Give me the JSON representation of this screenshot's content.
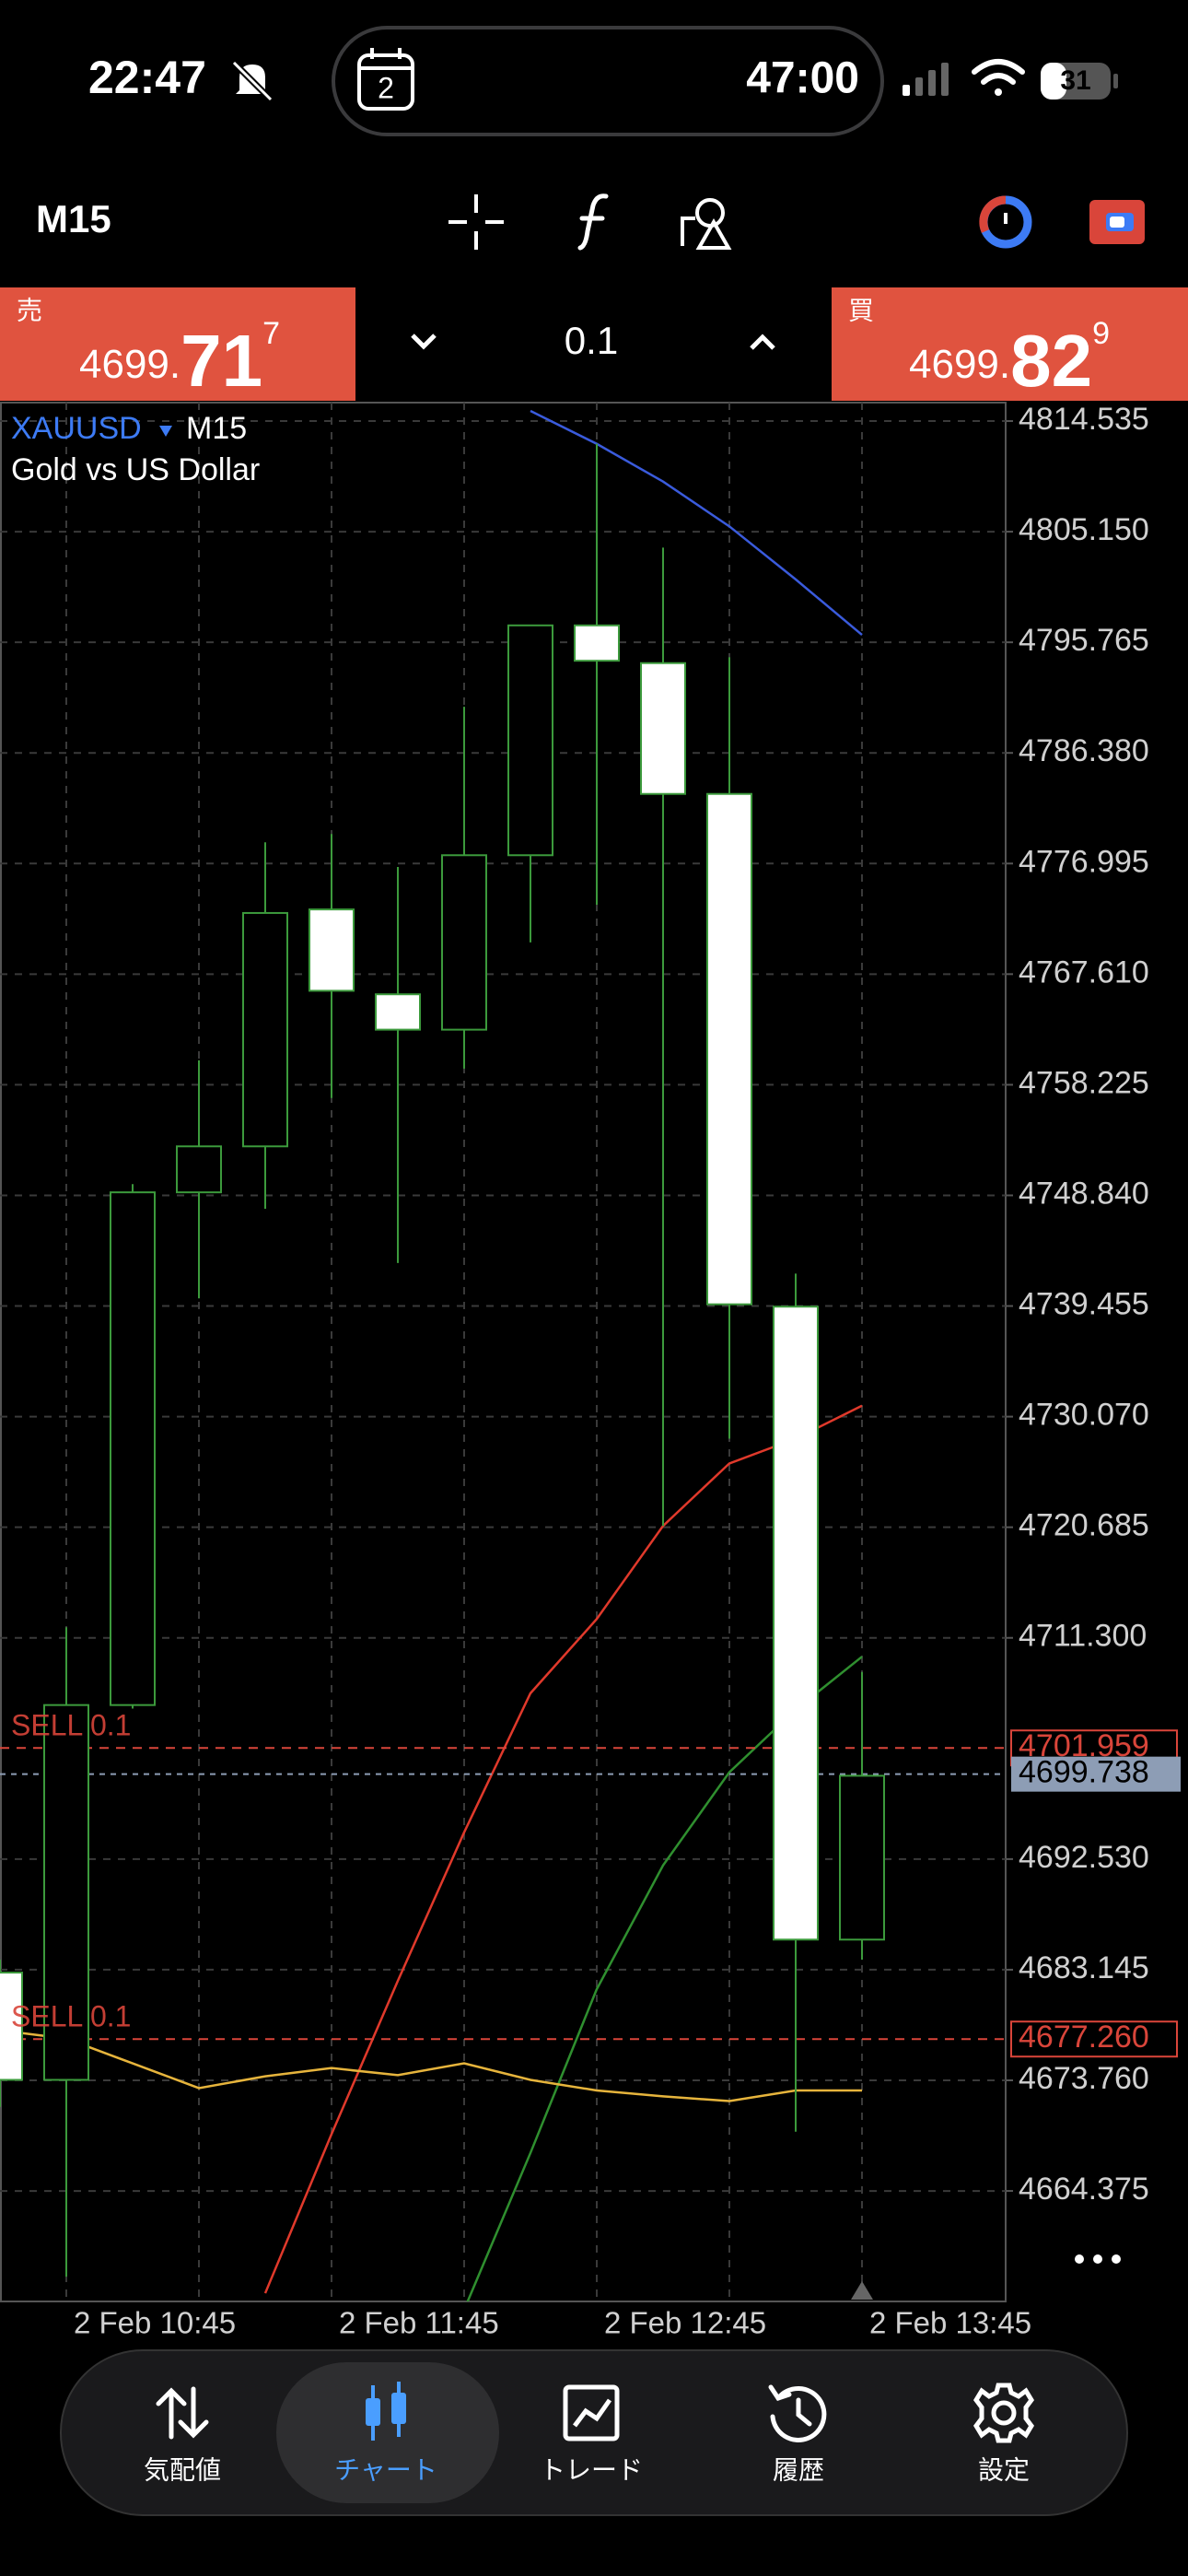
{
  "status_bar": {
    "time": "22:47",
    "calendar_day": "2",
    "timer": "47:00",
    "battery": "31"
  },
  "toolbar": {
    "timeframe": "M15"
  },
  "trade_panel": {
    "sell_label": "売",
    "sell_price_main": "4699.",
    "sell_price_big": "71",
    "sell_price_sup": "7",
    "volume": "0.1",
    "buy_label": "買",
    "buy_price_main": "4699.",
    "buy_price_big": "82",
    "buy_price_sup": "9"
  },
  "chart_data": {
    "type": "candlestick",
    "title": "XAUUSD",
    "timeframe": "M15",
    "subtitle": "Gold vs US Dollar",
    "categories": [
      null,
      "2 Feb 10:45",
      null,
      null,
      null,
      "2 Feb 11:45",
      null,
      null,
      null,
      "2 Feb 12:45",
      null,
      null,
      null,
      "2 Feb 13:45"
    ],
    "open": [
      4682.9,
      4673.8,
      4705.6,
      4749.1,
      4753.0,
      4773.1,
      4765.9,
      4762.9,
      4777.7,
      4797.2,
      4794.0,
      4782.9,
      4739.4,
      4685.7
    ],
    "high": [
      4684.0,
      4712.2,
      4749.8,
      4760.3,
      4778.8,
      4779.5,
      4776.7,
      4790.3,
      4797.2,
      4812.6,
      4803.8,
      4794.5,
      4742.2,
      4708.4
    ],
    "low": [
      4671.5,
      4657.1,
      4705.3,
      4740.1,
      4747.7,
      4757.1,
      4743.1,
      4759.6,
      4770.3,
      4773.5,
      4720.8,
      4728.2,
      4669.4,
      4684.0
    ],
    "close": [
      4673.8,
      4705.6,
      4749.1,
      4753.0,
      4772.8,
      4766.2,
      4762.9,
      4777.7,
      4797.2,
      4794.2,
      4782.9,
      4739.6,
      4685.7,
      4699.6
    ],
    "up_color": "#000000",
    "down_color": "#ffffff",
    "outline_color": "#3c9a3c",
    "series": [
      {
        "color": "#3a5bdc",
        "values": [
          null,
          null,
          null,
          null,
          null,
          null,
          null,
          null,
          4815.4,
          4812.6,
          4809.4,
          4805.6,
          4801.1,
          4796.4
        ]
      },
      {
        "color": "#e0392b",
        "values": [
          null,
          null,
          null,
          null,
          4655.7,
          4669.2,
          4682.2,
          4694.8,
          4706.6,
          4712.9,
          4720.8,
          4726.1,
          4728.2,
          4731.0
        ]
      },
      {
        "color": "#2f8f2f",
        "values": [
          null,
          null,
          null,
          null,
          null,
          null,
          null,
          4654.3,
          4667.6,
          4681.5,
          4692.0,
          4699.9,
          4705.2,
          4709.7
        ]
      },
      {
        "color": "#e6b43c",
        "values": [
          4678.0,
          4677.3,
          4675.2,
          4673.1,
          4674.1,
          4674.8,
          4674.2,
          4675.2,
          4673.8,
          4672.9,
          4672.4,
          4672.0,
          4672.9,
          4672.9
        ]
      }
    ],
    "levels": [
      {
        "label": "SELL 0.1",
        "value": 4701.959,
        "price_label": "4701.959",
        "color": "#d9453a"
      },
      {
        "label": "SELL 0.1",
        "value": 4677.26,
        "price_label": "4677.260",
        "color": "#d9453a"
      }
    ],
    "current_price": 4699.738,
    "current_price_color": "#8d9db5",
    "ylim": [
      4655.0,
      4816.1
    ],
    "yticks": [
      {
        "value": 4814.535,
        "label": "4814.535"
      },
      {
        "value": 4805.15,
        "label": "4805.150"
      },
      {
        "value": 4795.765,
        "label": "4795.765"
      },
      {
        "value": 4786.38,
        "label": "4786.380"
      },
      {
        "value": 4776.995,
        "label": "4776.995"
      },
      {
        "value": 4767.61,
        "label": "4767.610"
      },
      {
        "value": 4758.225,
        "label": "4758.225"
      },
      {
        "value": 4748.84,
        "label": "4748.840"
      },
      {
        "value": 4739.455,
        "label": "4739.455"
      },
      {
        "value": 4730.07,
        "label": "4730.070"
      },
      {
        "value": 4720.685,
        "label": "4720.685"
      },
      {
        "value": 4711.3,
        "label": "4711.300"
      },
      {
        "value": 4692.53,
        "label": "4692.530"
      },
      {
        "value": 4683.145,
        "label": "4683.145"
      },
      {
        "value": 4673.76,
        "label": "4673.760"
      },
      {
        "value": 4664.375,
        "label": "4664.375"
      }
    ],
    "grid": true
  },
  "nav": {
    "items": [
      {
        "label": "気配値"
      },
      {
        "label": "チャート"
      },
      {
        "label": "トレード"
      },
      {
        "label": "履歴"
      },
      {
        "label": "設定"
      }
    ]
  }
}
